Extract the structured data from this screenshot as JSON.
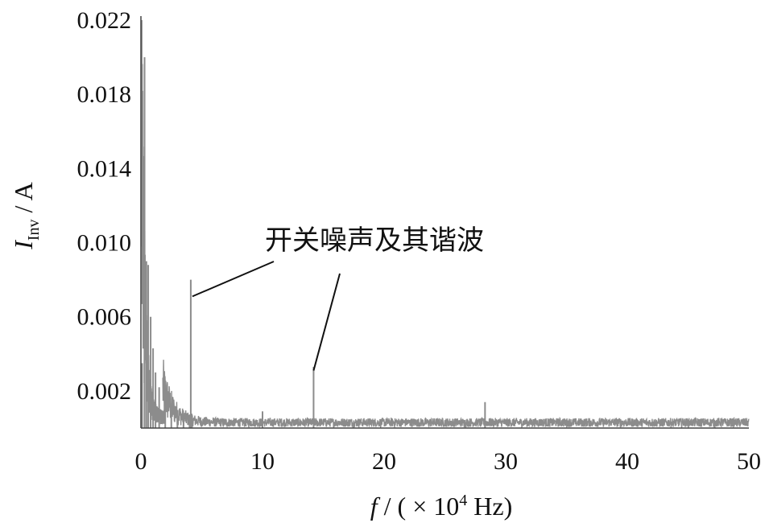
{
  "chart_data": {
    "type": "line",
    "title": "",
    "xlabel": "f / ( × 10⁴ Hz)",
    "xlabel_parts": {
      "var": "f",
      "rest_before_exp": " / ( × 10",
      "exp": "4",
      "rest_after_exp": " Hz)"
    },
    "ylabel": "I_Inv / A",
    "ylabel_parts": {
      "var": "I",
      "sub": "Inv",
      "rest": " / A"
    },
    "xlim": [
      0,
      50
    ],
    "ylim": [
      0,
      0.022
    ],
    "x_ticks": [
      0,
      10,
      20,
      30,
      40,
      50
    ],
    "x_tick_labels": [
      "0",
      "10",
      "20",
      "30",
      "40",
      "50"
    ],
    "y_ticks": [
      0.002,
      0.006,
      0.01,
      0.014,
      0.018,
      0.022
    ],
    "y_tick_labels": [
      "0.002",
      "0.006",
      "0.010",
      "0.014",
      "0.018",
      "0.022"
    ],
    "grid": false,
    "legend": "none",
    "series_color": "#8c8c8c",
    "noise_floor": 0.0004,
    "series": [
      {
        "x": [
          0.1,
          0.3,
          0.45,
          0.6,
          0.8,
          1.0,
          1.2,
          1.5,
          2.0,
          2.5,
          3.0,
          3.5,
          4.0,
          4.1,
          4.2,
          4.3,
          4.4,
          5,
          6,
          7,
          8,
          9,
          10,
          10.5,
          11,
          12,
          13,
          14,
          14.2,
          14.3,
          14.4,
          15,
          16,
          17,
          18,
          20,
          22,
          24,
          26,
          28,
          28.3,
          28.6,
          30,
          32,
          34,
          36,
          38,
          40,
          42,
          44,
          46,
          48,
          50
        ],
        "y": [
          0.0035,
          0.02,
          0.009,
          0.0088,
          0.006,
          0.0043,
          0.003,
          0.0022,
          0.0016,
          0.0012,
          0.0009,
          0.0008,
          0.0007,
          0.008,
          0.0007,
          0.0006,
          0.0006,
          0.0006,
          0.0005,
          0.0005,
          0.0005,
          0.0005,
          0.0009,
          0.0005,
          0.0005,
          0.0005,
          0.0005,
          0.0005,
          0.0033,
          0.0005,
          0.0005,
          0.0005,
          0.0005,
          0.0005,
          0.0005,
          0.0005,
          0.0005,
          0.0005,
          0.0005,
          0.0005,
          0.0014,
          0.0005,
          0.0005,
          0.0005,
          0.0005,
          0.0005,
          0.0005,
          0.0005,
          0.0005,
          0.0005,
          0.0005,
          0.0005,
          0.0005
        ]
      }
    ],
    "annotation": {
      "text": "开关噪声及其谐波",
      "targets": [
        {
          "x": 4.1,
          "y": 0.0071
        },
        {
          "x": 14.2,
          "y": 0.0031
        }
      ]
    }
  }
}
